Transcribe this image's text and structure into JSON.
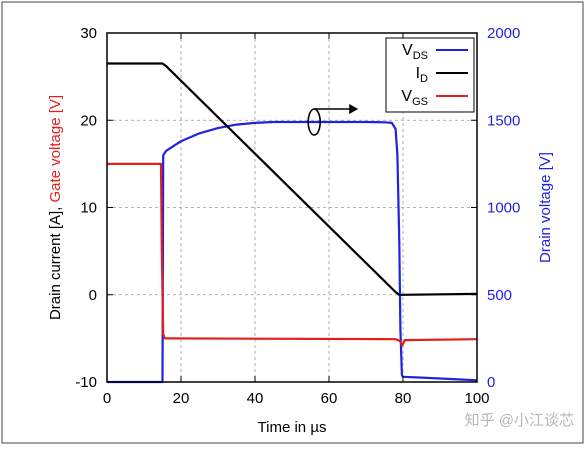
{
  "chart_data": {
    "type": "line",
    "xlabel": "Time in µs",
    "x_ticks": [
      "0",
      "20",
      "40",
      "60",
      "80",
      "100"
    ],
    "xlim": [
      0,
      100
    ],
    "y_left_label_parts": [
      {
        "text": "Drain current [A],",
        "color": "#000000"
      },
      {
        "text": "Gate voltage [V]",
        "color": "#e0201c"
      }
    ],
    "y_left_ticks": [
      "-10",
      "0",
      "10",
      "20",
      "30"
    ],
    "ylim_left": [
      -10,
      30
    ],
    "y_right_label": "Drain voltage [V]",
    "y_right_ticks": [
      "0",
      "500",
      "1000",
      "1500",
      "2000"
    ],
    "ylim_right": [
      0,
      2000
    ],
    "grid": "dashed",
    "legend_position": "top-right",
    "legend": [
      {
        "label": "V",
        "sub": "DS",
        "color": "#2222dd"
      },
      {
        "label": "I",
        "sub": "D",
        "color": "#000000"
      },
      {
        "label": "V",
        "sub": "GS",
        "color": "#e0201c"
      }
    ],
    "series": [
      {
        "axis": "right",
        "color": "#2222dd",
        "x": [
          0,
          15,
          15.2,
          16,
          20,
          25,
          30,
          35,
          40,
          45,
          50,
          55,
          60,
          65,
          70,
          75,
          77,
          78,
          78.5,
          79,
          79.3,
          79.7,
          80,
          85,
          90,
          95,
          100
        ],
        "y": [
          0,
          0,
          1300,
          1325,
          1380,
          1425,
          1455,
          1475,
          1485,
          1490,
          1490,
          1490,
          1490,
          1490,
          1490,
          1488,
          1485,
          1450,
          1300,
          800,
          300,
          40,
          30,
          25,
          20,
          15,
          10
        ]
      },
      {
        "axis": "left",
        "color": "#000000",
        "x": [
          0,
          15,
          16,
          78,
          79,
          80,
          100
        ],
        "y": [
          26.5,
          26.5,
          26.2,
          0.3,
          0,
          0,
          0.1
        ]
      },
      {
        "axis": "left",
        "color": "#e0201c",
        "x": [
          0,
          14.6,
          14.8,
          15.2,
          15.6,
          16,
          78,
          79.2,
          79.8,
          80.5,
          100
        ],
        "y": [
          15,
          15,
          5,
          -4.5,
          -5,
          -5,
          -5.1,
          -5.3,
          -5.8,
          -5.2,
          -5.1
        ]
      }
    ],
    "annotations": [
      {
        "type": "circled-arrow",
        "meaning": "VDS curve belongs to right axis"
      }
    ]
  },
  "watermark": "知乎 @小江谈芯"
}
